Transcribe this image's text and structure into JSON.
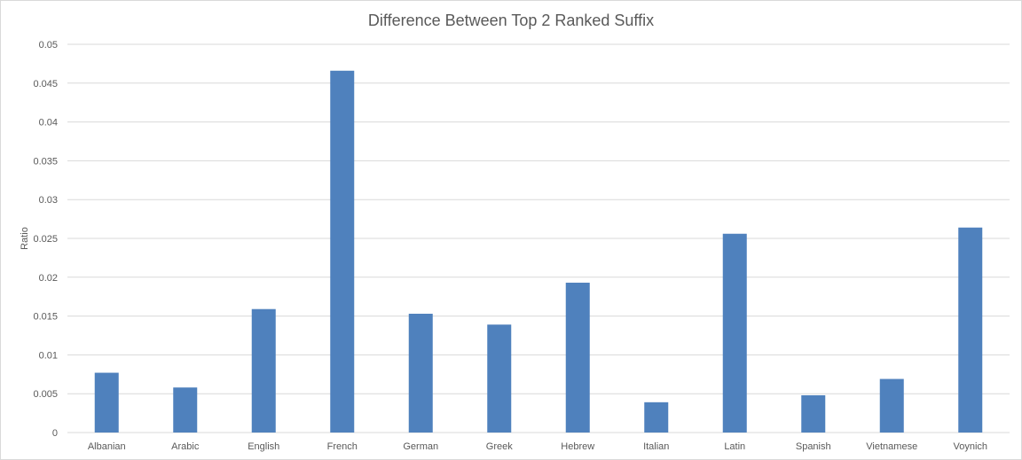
{
  "chart_data": {
    "type": "bar",
    "title": "Difference Between Top 2 Ranked Suffix",
    "xlabel": "",
    "ylabel": "Ratio",
    "ylim": [
      0,
      0.05
    ],
    "yticks": [
      "0",
      "0.005",
      "0.01",
      "0.015",
      "0.02",
      "0.025",
      "0.03",
      "0.035",
      "0.04",
      "0.045",
      "0.05"
    ],
    "categories": [
      "Albanian",
      "Arabic",
      "English",
      "French",
      "German",
      "Greek",
      "Hebrew",
      "Italian",
      "Latin",
      "Spanish",
      "Vietnamese",
      "Voynich"
    ],
    "values": [
      0.0077,
      0.0058,
      0.0159,
      0.0466,
      0.0153,
      0.0139,
      0.0193,
      0.0039,
      0.0256,
      0.0048,
      0.0069,
      0.0264
    ],
    "grid": true,
    "legend": "none",
    "bar_color": "#4f81bd"
  }
}
